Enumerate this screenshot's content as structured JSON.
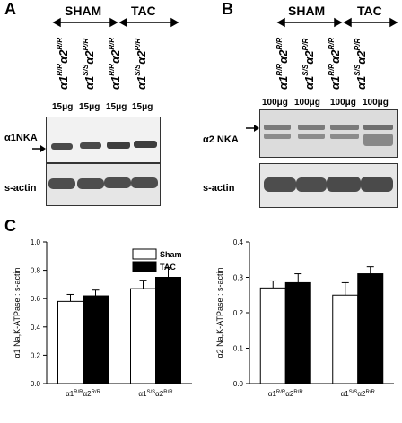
{
  "panels": {
    "A": {
      "letter": "A",
      "groups": [
        "SHAM",
        "TAC"
      ],
      "lanes": [
        {
          "base1": "α1",
          "sup1": "R/R",
          "base2": "α2",
          "sup2": "R/R"
        },
        {
          "base1": "α1",
          "sup1": "S/S",
          "base2": "α2",
          "sup2": "R/R"
        },
        {
          "base1": "α1",
          "sup1": "R/R",
          "base2": "α2",
          "sup2": "R/R"
        },
        {
          "base1": "α1",
          "sup1": "S/S",
          "base2": "α2",
          "sup2": "R/R"
        }
      ],
      "amounts": [
        "15μg",
        "15μg",
        "15μg",
        "15μg"
      ],
      "rows": [
        "α1NKA",
        "s-actin"
      ]
    },
    "B": {
      "letter": "B",
      "groups": [
        "SHAM",
        "TAC"
      ],
      "lanes": [
        {
          "base1": "α1",
          "sup1": "R/R",
          "base2": "α2",
          "sup2": "R/R"
        },
        {
          "base1": "α1",
          "sup1": "S/S",
          "base2": "α2",
          "sup2": "R/R"
        },
        {
          "base1": "α1",
          "sup1": "R/R",
          "base2": "α2",
          "sup2": "R/R"
        },
        {
          "base1": "α1",
          "sup1": "S/S",
          "base2": "α2",
          "sup2": "R/R"
        }
      ],
      "amounts": [
        "100μg",
        "100μg",
        "100μg",
        "100μg"
      ],
      "rows": [
        "α2 NKA",
        "s-actin"
      ]
    },
    "C": {
      "letter": "C",
      "legend": {
        "items": [
          "Sham",
          "TAC"
        ]
      }
    }
  },
  "chart_data": [
    {
      "type": "bar",
      "ylabel": "α1 Na,K-ATPase : s-actin",
      "ylim": [
        0.0,
        1.0
      ],
      "yticks": [
        "0.0",
        "0.2",
        "0.4",
        "0.6",
        "0.8",
        "1.0"
      ],
      "categories": [
        {
          "base1": "α1",
          "sup1": "R/R",
          "base2": "α2",
          "sup2": "R/R"
        },
        {
          "base1": "α1",
          "sup1": "S/S",
          "base2": "α2",
          "sup2": "R/R"
        }
      ],
      "series": [
        {
          "name": "Sham",
          "color": "#ffffff",
          "values": [
            0.58,
            0.67
          ],
          "errors": [
            0.05,
            0.06
          ]
        },
        {
          "name": "TAC",
          "color": "#000000",
          "values": [
            0.62,
            0.75
          ],
          "errors": [
            0.04,
            0.07
          ]
        }
      ],
      "legend": "top-left"
    },
    {
      "type": "bar",
      "ylabel": "α2 Na,K-ATPase : s-actin",
      "ylim": [
        0.0,
        0.4
      ],
      "yticks": [
        "0.0",
        "0.1",
        "0.2",
        "0.3",
        "0.4"
      ],
      "categories": [
        {
          "base1": "α1",
          "sup1": "R/R",
          "base2": "α2",
          "sup2": "R/R"
        },
        {
          "base1": "α1",
          "sup1": "S/S",
          "base2": "α2",
          "sup2": "R/R"
        }
      ],
      "series": [
        {
          "name": "Sham",
          "color": "#ffffff",
          "values": [
            0.27,
            0.25
          ],
          "errors": [
            0.02,
            0.035
          ]
        },
        {
          "name": "TAC",
          "color": "#000000",
          "values": [
            0.285,
            0.31
          ],
          "errors": [
            0.025,
            0.02
          ]
        }
      ]
    }
  ]
}
